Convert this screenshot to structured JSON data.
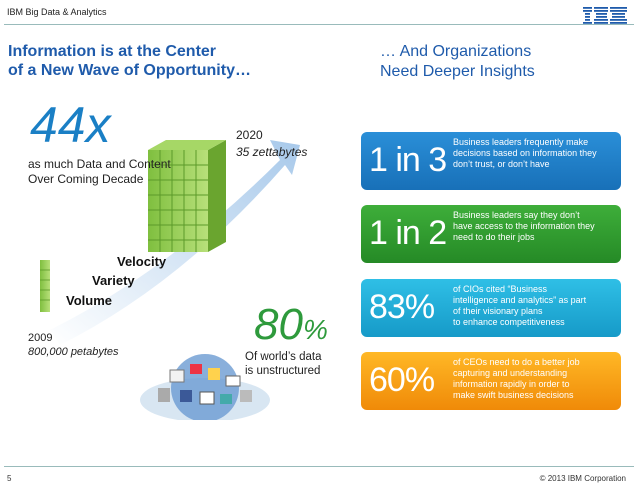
{
  "header": {
    "brand": "IBM Big Data & Analytics",
    "logo_text": "IBM"
  },
  "left": {
    "title": "Information is at the Center\nof a New Wave of Opportunity…",
    "big_stat": "44x",
    "big_stat_text": "as much Data and Content\nOver Coming Decade",
    "year_2020": "2020",
    "amount_2020": "35 zettabytes",
    "year_2009": "2009",
    "amount_2009": "800,000 petabytes",
    "velocity": "Velocity",
    "variety": "Variety",
    "volume": "Volume",
    "unstructured_value": "80",
    "unstructured_unit": "%",
    "unstructured_text": "Of world’s data\nis unstructured"
  },
  "right": {
    "title": "… And Organizations\nNeed Deeper Insights",
    "boxes": [
      {
        "stat": "1 in 3",
        "text": "Business leaders frequently make\ndecisions based on information they\ndon’t trust, or don’t have"
      },
      {
        "stat": "1 in 2",
        "text": "Business leaders say they don’t\nhave access to the information they\nneed to do their jobs"
      },
      {
        "stat": "83%",
        "text": "of CIOs cited “Business\nintelligence and analytics” as part\nof their visionary plans\nto enhance competitiveness"
      },
      {
        "stat": "60%",
        "text": "of CEOs need to do a better job\ncapturing and understanding\ninformation rapidly in order to\nmake swift business decisions"
      }
    ]
  },
  "footer": {
    "page": "5",
    "copyright": "© 2013 IBM Corporation"
  }
}
